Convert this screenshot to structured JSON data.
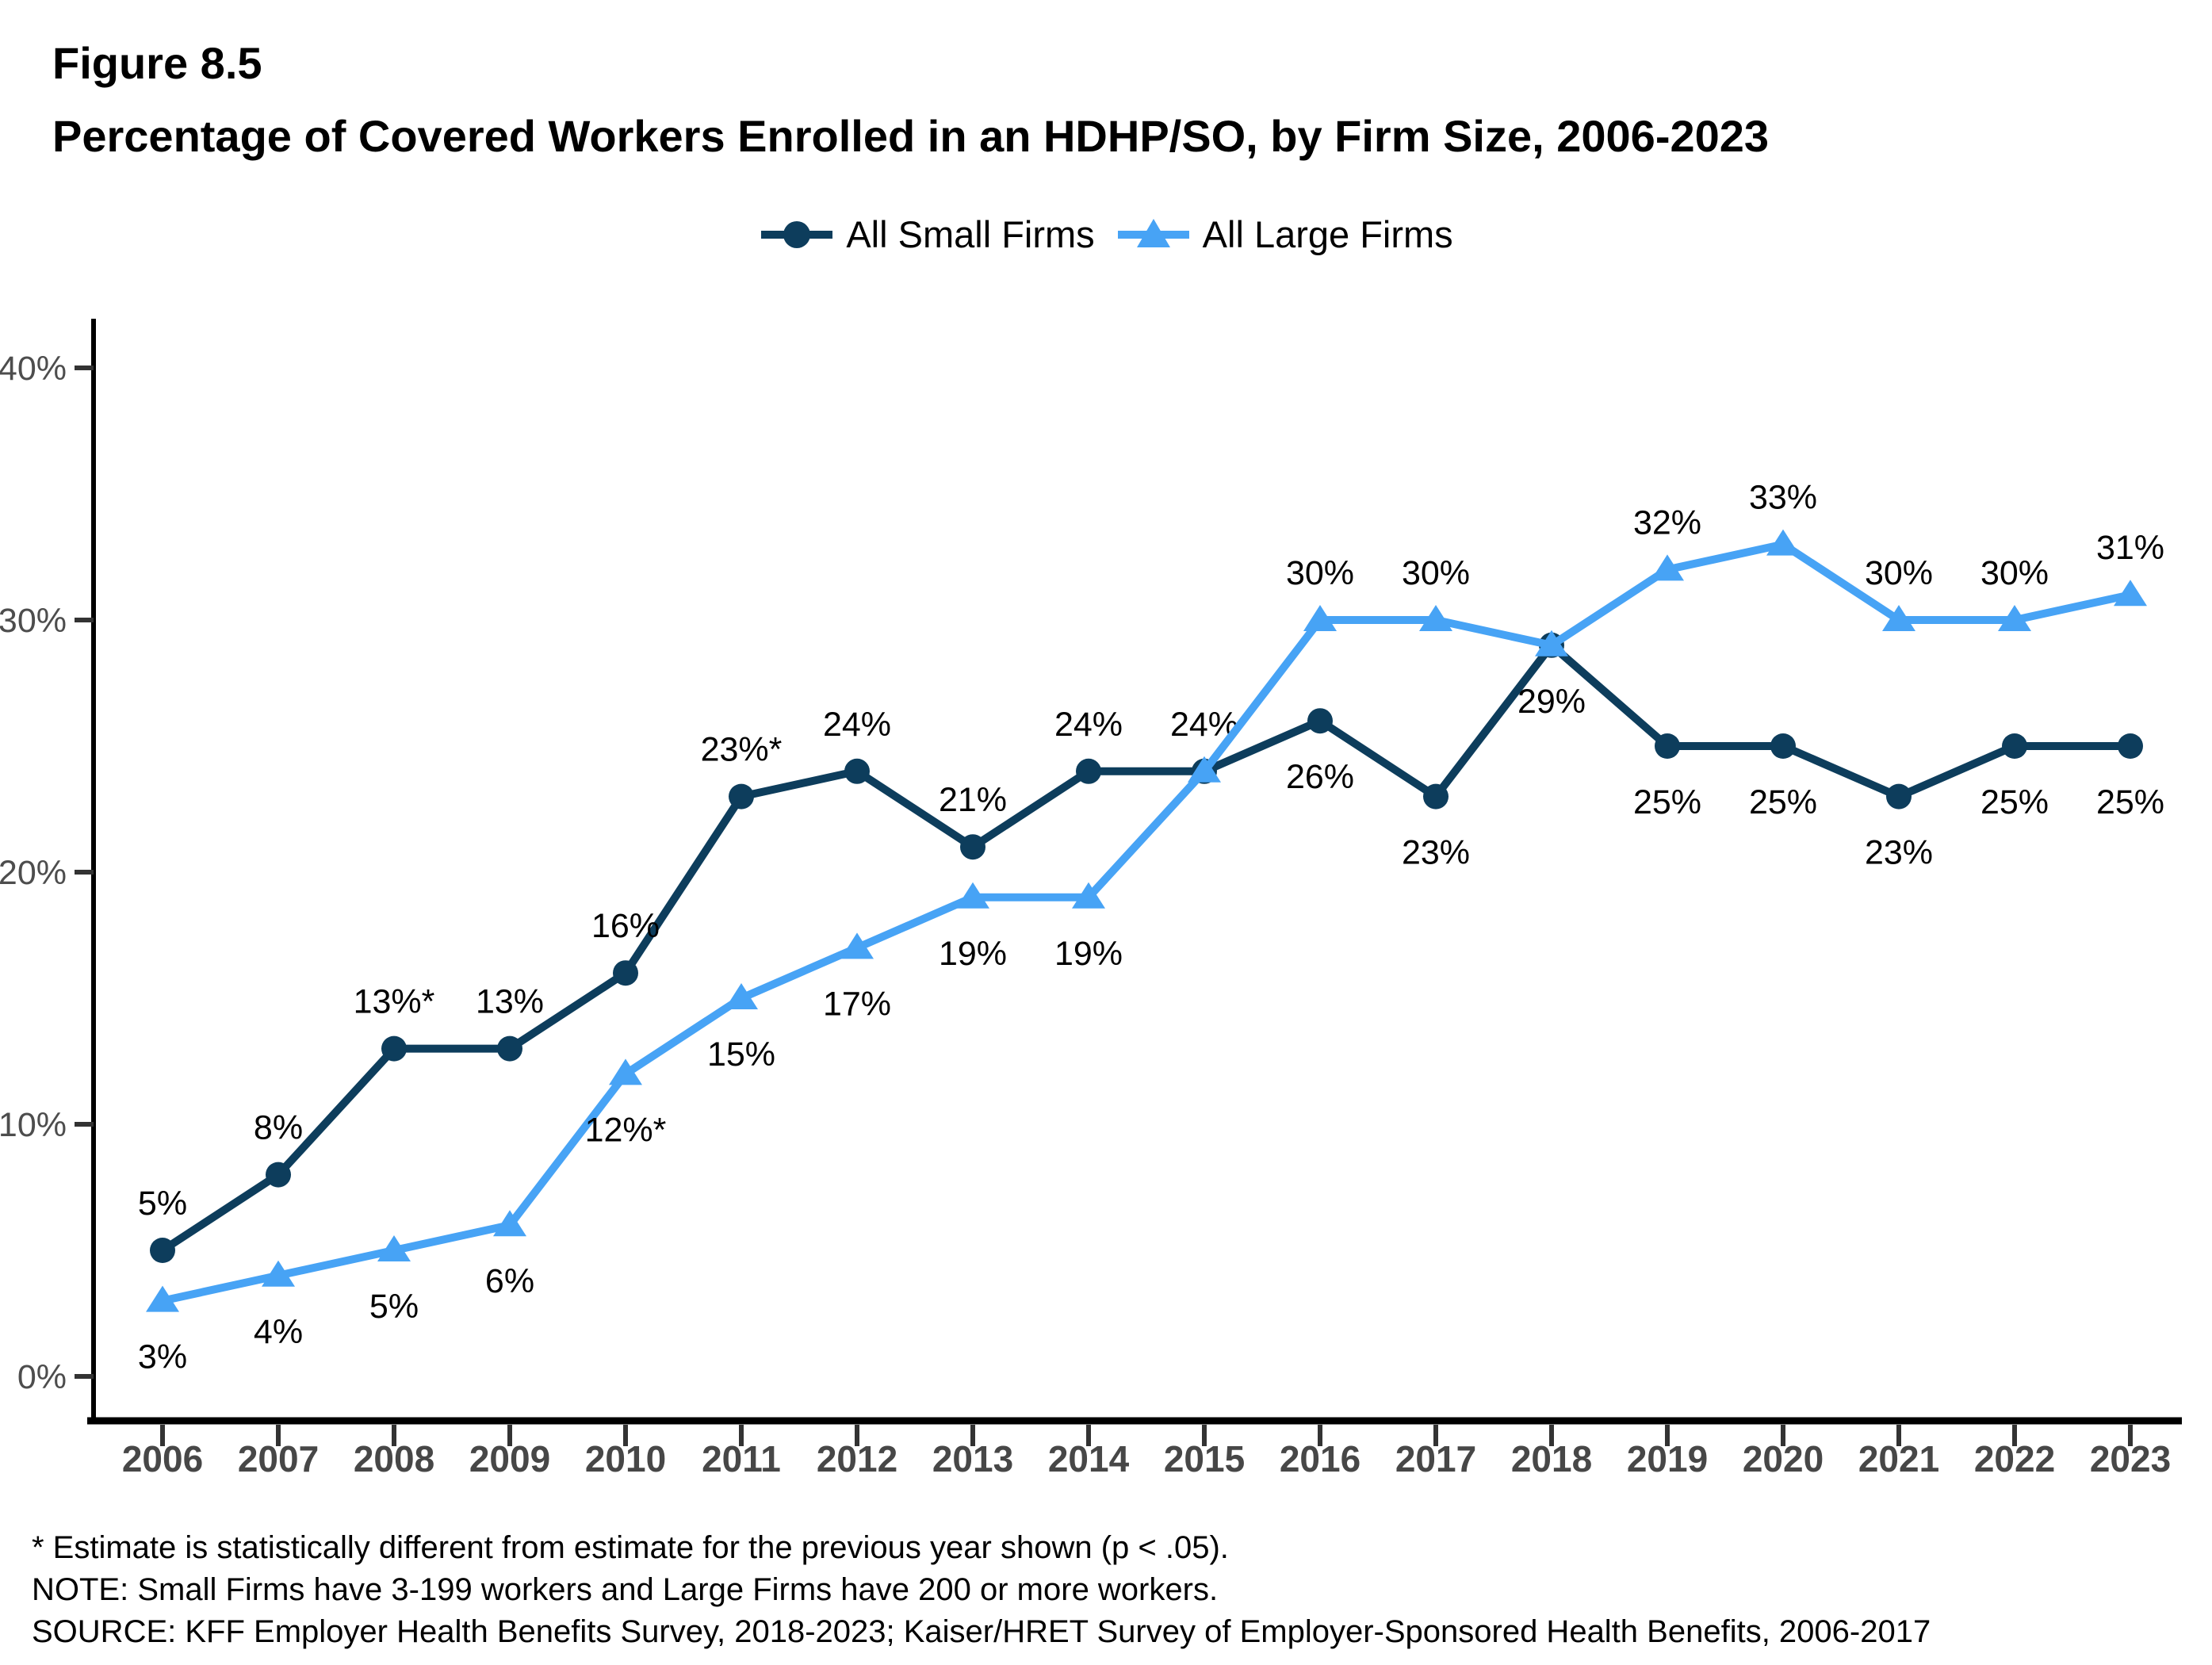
{
  "header": {
    "figure_label": "Figure 8.5",
    "title": "Percentage of Covered Workers Enrolled in an HDHP/SO, by Firm Size, 2006-2023"
  },
  "legend": {
    "items": [
      {
        "label": "All Small Firms",
        "marker": "circle",
        "color": "#0D3D5C"
      },
      {
        "label": "All Large Firms",
        "marker": "triangle",
        "color": "#47A3F5"
      }
    ]
  },
  "chart_data": {
    "type": "line",
    "x": [
      2006,
      2007,
      2008,
      2009,
      2010,
      2011,
      2012,
      2013,
      2014,
      2015,
      2016,
      2017,
      2018,
      2019,
      2020,
      2021,
      2022,
      2023
    ],
    "ylim": [
      0,
      40
    ],
    "ytick_values": [
      0,
      10,
      20,
      30,
      40
    ],
    "ytick_labels": [
      "0%",
      "10%",
      "20%",
      "30%",
      "40%"
    ],
    "grid": false,
    "legend_position": "top-center",
    "series": [
      {
        "name": "All Small Firms",
        "color": "#0D3D5C",
        "marker": "circle",
        "values": [
          5,
          8,
          13,
          13,
          16,
          23,
          24,
          21,
          24,
          24,
          26,
          23,
          29,
          25,
          25,
          23,
          25,
          25
        ],
        "point_labels": [
          "5%",
          "8%",
          "13%*",
          "13%",
          "16%",
          "23%*",
          "24%",
          "21%",
          "24%",
          "24%",
          "26%",
          "23%",
          "29%",
          "25%",
          "25%",
          "23%",
          "25%",
          "25%"
        ],
        "label_side": [
          "above",
          "above",
          "above",
          "above",
          "above",
          "above",
          "above",
          "above",
          "above",
          "above",
          "below",
          "below",
          "below",
          "below",
          "below",
          "below",
          "below",
          "below"
        ]
      },
      {
        "name": "All Large Firms",
        "color": "#47A3F5",
        "marker": "triangle",
        "values": [
          3,
          4,
          5,
          6,
          12,
          15,
          17,
          19,
          19,
          24,
          30,
          30,
          29,
          32,
          33,
          30,
          30,
          31
        ],
        "point_labels": [
          "3%",
          "4%",
          "5%",
          "6%",
          "12%*",
          "15%",
          "17%",
          "19%",
          "19%",
          null,
          "30%",
          "30%",
          null,
          "32%",
          "33%",
          "30%",
          "30%",
          "31%"
        ],
        "label_side": [
          "below",
          "below",
          "below",
          "below",
          "below",
          "below",
          "below",
          "below",
          "below",
          null,
          "above",
          "above",
          null,
          "above",
          "above",
          "above",
          "above",
          "above"
        ]
      }
    ],
    "axis_colors": {
      "axis_line": "#000000",
      "x_tick_label": "#474747",
      "y_tick_label": "#4d4d4d",
      "tick_mark": "#333333"
    }
  },
  "footnotes": {
    "asterisk": "* Estimate is statistically different from estimate for the previous year shown (p < .05).",
    "note": "NOTE: Small Firms have 3-199 workers and Large Firms have 200 or more workers.",
    "source": "SOURCE: KFF Employer Health Benefits Survey, 2018-2023; Kaiser/HRET Survey of Employer-Sponsored Health Benefits, 2006-2017"
  }
}
